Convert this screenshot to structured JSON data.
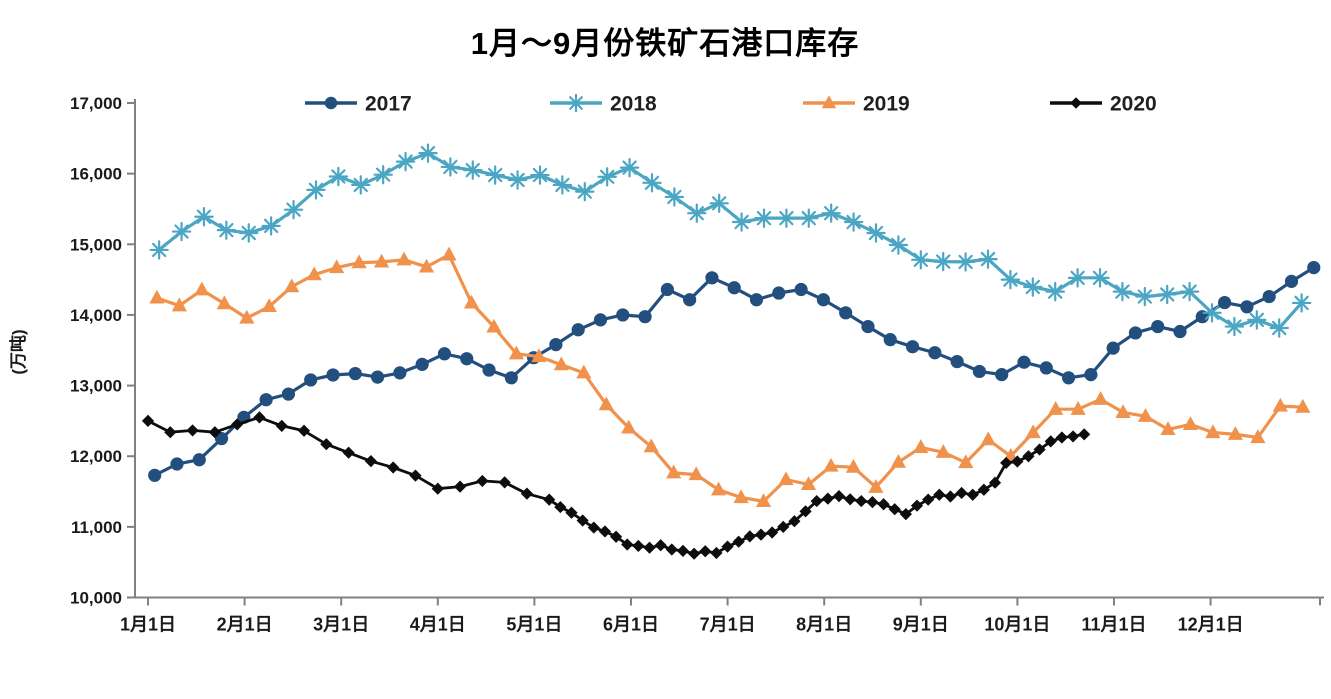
{
  "chart_data": {
    "type": "line",
    "title": "1月～9月份铁矿石港口库存",
    "ylabel": "(万吨)",
    "xlabel": "",
    "unit": "万吨",
    "grid": false,
    "legend_position": "top",
    "ylim": [
      10000,
      17000
    ],
    "ytick_step": 1000,
    "ytick_labels": [
      "10,000",
      "11,000",
      "12,000",
      "13,000",
      "14,000",
      "15,000",
      "16,000",
      "17,000"
    ],
    "x_axis_months": [
      "1月1日",
      "2月1日",
      "3月1日",
      "4月1日",
      "5月1日",
      "6月1日",
      "7月1日",
      "8月1日",
      "9月1日",
      "10月1日",
      "11月1日",
      "12月1日"
    ],
    "x_unit": "week-of-year",
    "series": [
      {
        "name": "2017",
        "color": "#234F7E",
        "marker": "circle",
        "x_start": 0.3,
        "x_step": 1.0,
        "values": [
          11730,
          11890,
          11950,
          12250,
          12550,
          12800,
          12880,
          13080,
          13150,
          13170,
          13120,
          13180,
          13300,
          13450,
          13380,
          13220,
          13110,
          13395,
          13580,
          13790,
          13930,
          14000,
          13975,
          14360,
          14215,
          14525,
          14385,
          14215,
          14310,
          14360,
          14215,
          14030,
          13835,
          13650,
          13550,
          13465,
          13340,
          13200,
          13155,
          13330,
          13250,
          13110,
          13155,
          13530,
          13745,
          13835,
          13765,
          13975,
          14175,
          14115,
          14260,
          14475,
          14670
        ]
      },
      {
        "name": "2018",
        "color": "#4BA6C4",
        "marker": "asterisk",
        "x_start": 0.5,
        "x_step": 1.005,
        "values": [
          14920,
          15180,
          15390,
          15200,
          15160,
          15260,
          15490,
          15770,
          15960,
          15840,
          15985,
          16170,
          16290,
          16095,
          16050,
          15980,
          15910,
          15980,
          15840,
          15745,
          15955,
          16085,
          15870,
          15670,
          15440,
          15580,
          15315,
          15370,
          15370,
          15370,
          15440,
          15315,
          15160,
          14990,
          14780,
          14755,
          14750,
          14790,
          14500,
          14395,
          14330,
          14525,
          14525,
          14330,
          14260,
          14290,
          14330,
          14030,
          13835,
          13930,
          13815,
          14170
        ]
      },
      {
        "name": "2019",
        "color": "#F0924C",
        "marker": "triangle",
        "x_start": 0.4,
        "x_step": 1.008,
        "values": [
          14240,
          14130,
          14355,
          14160,
          13955,
          14120,
          14400,
          14570,
          14670,
          14740,
          14750,
          14780,
          14680,
          14850,
          14170,
          13830,
          13450,
          13410,
          13295,
          13180,
          12730,
          12400,
          12135,
          11765,
          11740,
          11525,
          11415,
          11360,
          11670,
          11600,
          11860,
          11845,
          11560,
          11915,
          12125,
          12055,
          11910,
          12235,
          12000,
          12335,
          12665,
          12665,
          12805,
          12620,
          12565,
          12380,
          12450,
          12335,
          12310,
          12265,
          12710,
          12695
        ]
      },
      {
        "name": "2020",
        "color": "#0d0d0d",
        "marker": "diamond",
        "points": [
          [
            0,
            12500
          ],
          [
            1,
            12340
          ],
          [
            2,
            12365
          ],
          [
            3,
            12340
          ],
          [
            4,
            12450
          ],
          [
            5,
            12550
          ],
          [
            6,
            12430
          ],
          [
            7,
            12360
          ],
          [
            8,
            12170
          ],
          [
            9,
            12050
          ],
          [
            10,
            11930
          ],
          [
            11,
            11840
          ],
          [
            12,
            11725
          ],
          [
            13,
            11540
          ],
          [
            14,
            11570
          ],
          [
            15,
            11650
          ],
          [
            16,
            11630
          ],
          [
            17,
            11470
          ],
          [
            18,
            11385
          ],
          [
            18.5,
            11280
          ],
          [
            19,
            11200
          ],
          [
            19.5,
            11090
          ],
          [
            20,
            10990
          ],
          [
            20.5,
            10935
          ],
          [
            21,
            10860
          ],
          [
            21.5,
            10750
          ],
          [
            22,
            10730
          ],
          [
            22.5,
            10705
          ],
          [
            23,
            10740
          ],
          [
            23.5,
            10680
          ],
          [
            24,
            10660
          ],
          [
            24.5,
            10620
          ],
          [
            25,
            10655
          ],
          [
            25.5,
            10630
          ],
          [
            26,
            10720
          ],
          [
            26.5,
            10790
          ],
          [
            27,
            10865
          ],
          [
            27.5,
            10890
          ],
          [
            28,
            10920
          ],
          [
            28.5,
            11000
          ],
          [
            29,
            11080
          ],
          [
            29.5,
            11220
          ],
          [
            30,
            11365
          ],
          [
            30.5,
            11400
          ],
          [
            31,
            11435
          ],
          [
            31.5,
            11390
          ],
          [
            32,
            11365
          ],
          [
            32.5,
            11350
          ],
          [
            33,
            11320
          ],
          [
            33.5,
            11250
          ],
          [
            34,
            11180
          ],
          [
            34.5,
            11300
          ],
          [
            35,
            11385
          ],
          [
            35.5,
            11455
          ],
          [
            36,
            11430
          ],
          [
            36.5,
            11480
          ],
          [
            37,
            11455
          ],
          [
            37.5,
            11525
          ],
          [
            38,
            11625
          ],
          [
            38.5,
            11905
          ],
          [
            39,
            11925
          ],
          [
            39.5,
            12000
          ],
          [
            40,
            12095
          ],
          [
            40.5,
            12210
          ],
          [
            41,
            12265
          ],
          [
            41.5,
            12280
          ],
          [
            42,
            12310
          ]
        ]
      }
    ]
  },
  "colors": {
    "axis": "#808080",
    "background": "#ffffff",
    "text": "#1a1a1a"
  }
}
